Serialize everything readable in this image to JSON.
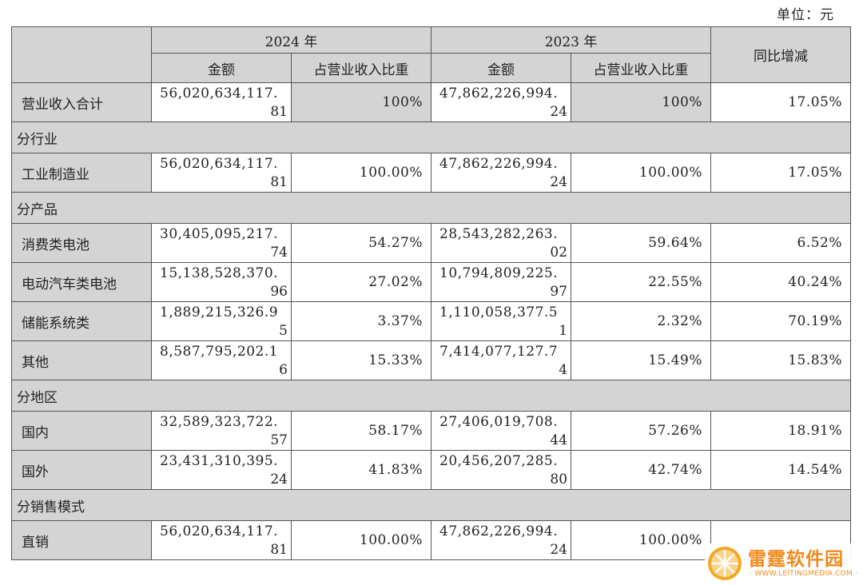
{
  "unit_label": "单位：元",
  "header": {
    "year_2024": "2024 年",
    "year_2023": "2023 年",
    "yoy": "同比增减",
    "amount": "金额",
    "share": "占营业收入比重"
  },
  "rows": [
    {
      "kind": "data",
      "label": "营业收入合计",
      "amt2024_l1": "56,020,634,117.",
      "amt2024_l2": "81",
      "pct2024": "100%",
      "amt2023_l1": "47,862,226,994.",
      "amt2023_l2": "24",
      "pct2023": "100%",
      "yoy": "17.05%"
    },
    {
      "kind": "section",
      "label": "分行业"
    },
    {
      "kind": "data",
      "label": "工业制造业",
      "amt2024_l1": "56,020,634,117.",
      "amt2024_l2": "81",
      "pct2024": "100.00%",
      "amt2023_l1": "47,862,226,994.",
      "amt2023_l2": "24",
      "pct2023": "100.00%",
      "yoy": "17.05%"
    },
    {
      "kind": "section",
      "label": "分产品"
    },
    {
      "kind": "data",
      "label": "消费类电池",
      "amt2024_l1": "30,405,095,217.",
      "amt2024_l2": "74",
      "pct2024": "54.27%",
      "amt2023_l1": "28,543,282,263.",
      "amt2023_l2": "02",
      "pct2023": "59.64%",
      "yoy": "6.52%"
    },
    {
      "kind": "data",
      "label": "电动汽车类电池",
      "amt2024_l1": "15,138,528,370.",
      "amt2024_l2": "96",
      "pct2024": "27.02%",
      "amt2023_l1": "10,794,809,225.",
      "amt2023_l2": "97",
      "pct2023": "22.55%",
      "yoy": "40.24%"
    },
    {
      "kind": "data",
      "label": "储能系统类",
      "amt2024_l1": "1,889,215,326.9",
      "amt2024_l2": "5",
      "pct2024": "3.37%",
      "amt2023_l1": "1,110,058,377.5",
      "amt2023_l2": "1",
      "pct2023": "2.32%",
      "yoy": "70.19%"
    },
    {
      "kind": "data",
      "label": "其他",
      "amt2024_l1": "8,587,795,202.1",
      "amt2024_l2": "6",
      "pct2024": "15.33%",
      "amt2023_l1": "7,414,077,127.7",
      "amt2023_l2": "4",
      "pct2023": "15.49%",
      "yoy": "15.83%"
    },
    {
      "kind": "section",
      "label": "分地区"
    },
    {
      "kind": "data",
      "label": "国内",
      "amt2024_l1": "32,589,323,722.",
      "amt2024_l2": "57",
      "pct2024": "58.17%",
      "amt2023_l1": "27,406,019,708.",
      "amt2023_l2": "44",
      "pct2023": "57.26%",
      "yoy": "18.91%"
    },
    {
      "kind": "data",
      "label": "国外",
      "amt2024_l1": "23,431,310,395.",
      "amt2024_l2": "24",
      "pct2024": "41.83%",
      "amt2023_l1": "20,456,207,285.",
      "amt2023_l2": "80",
      "pct2023": "42.74%",
      "yoy": "14.54%"
    },
    {
      "kind": "section",
      "label": "分销售模式"
    },
    {
      "kind": "data",
      "label": "直销",
      "amt2024_l1": "56,020,634,117.",
      "amt2024_l2": "81",
      "pct2024": "100.00%",
      "amt2023_l1": "47,862,226,994.",
      "amt2023_l2": "24",
      "pct2023": "100.00%",
      "yoy": ""
    }
  ],
  "watermark": {
    "name": "雷霆软件园",
    "url": "· WWW.LEITINGMEDIA.COM ·",
    "logo_icon": "orange-slice-icon",
    "accent_color": "#f18a1c"
  }
}
